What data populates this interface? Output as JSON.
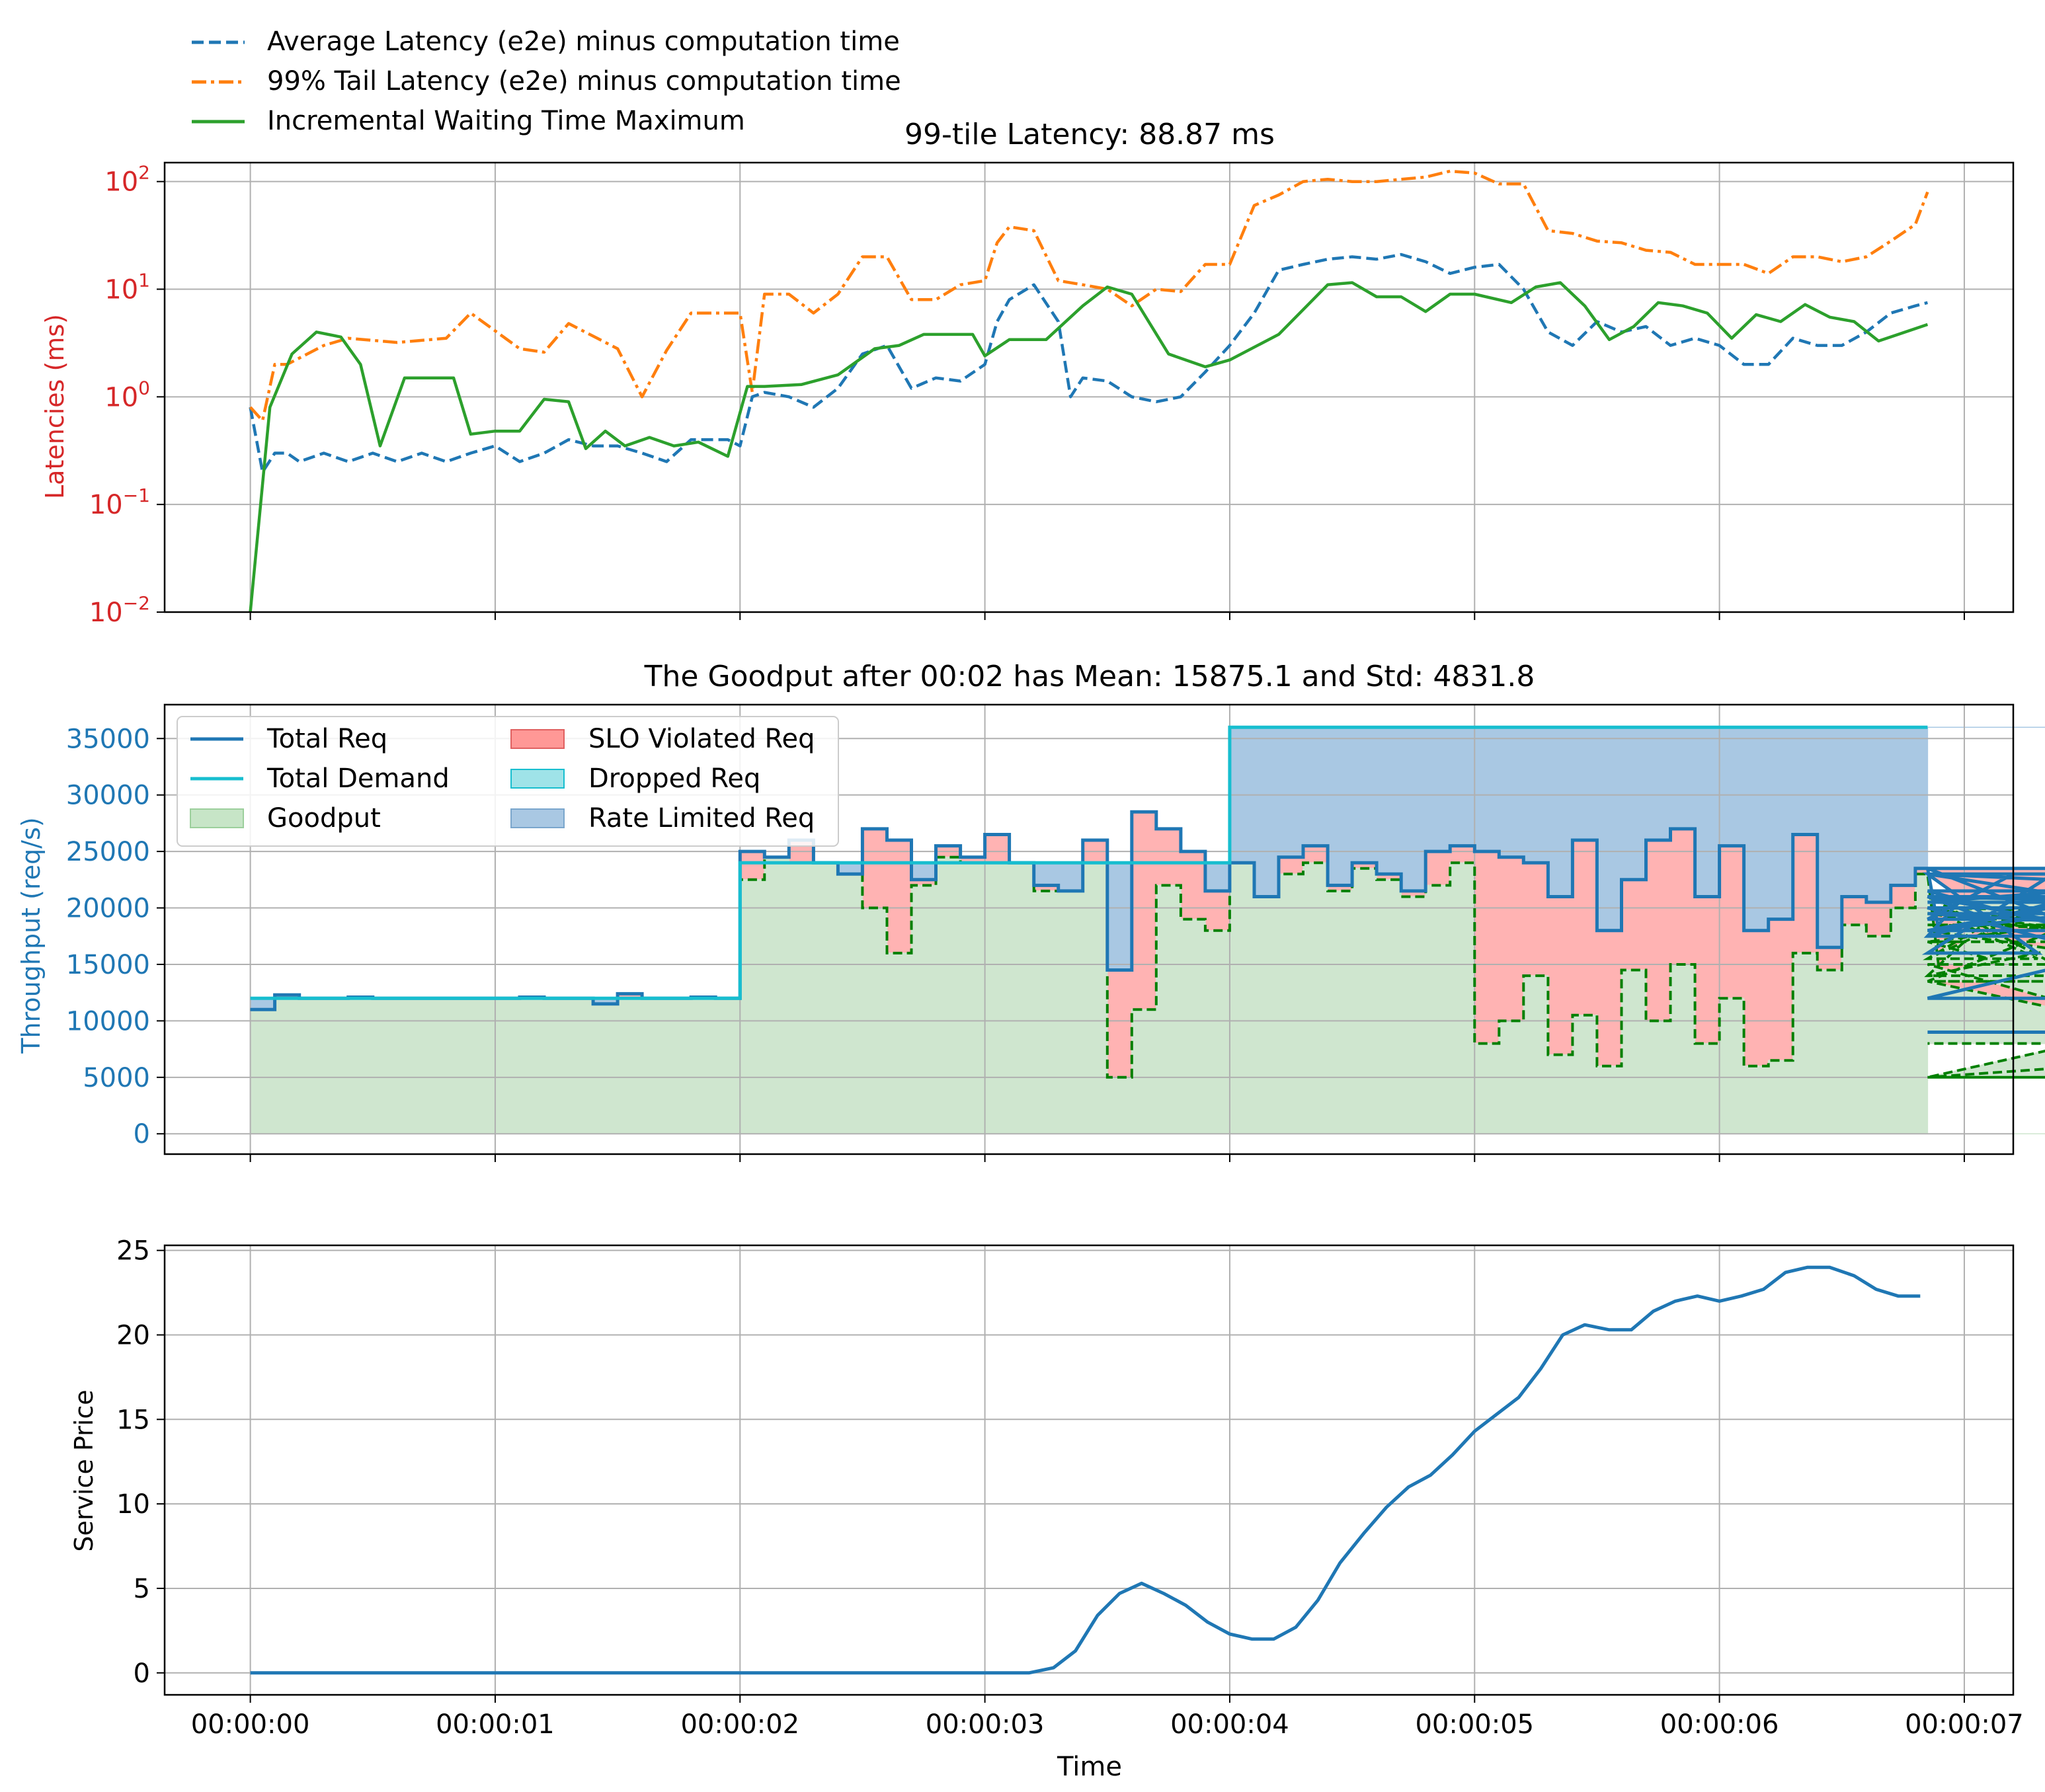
{
  "top_legend": [
    {
      "label": "Average Latency (e2e) minus computation time",
      "color": "#1f77b4",
      "style": "dashed"
    },
    {
      "label": "99% Tail Latency (e2e) minus computation time",
      "color": "#ff7f0e",
      "style": "dashdot"
    },
    {
      "label": "Incremental Waiting Time Maximum",
      "color": "#2ca02c",
      "style": "solid"
    }
  ],
  "chart_data": [
    {
      "type": "line",
      "title": "99-tile Latency: 88.87 ms",
      "ylabel": "Latencies (ms)",
      "ylabel_color": "#d62728",
      "yscale": "log",
      "ylim": [
        0.01,
        150
      ],
      "xlim": [
        -0.35,
        7.2
      ],
      "x_unit": "seconds",
      "grid": true,
      "yticks": [
        {
          "value": 0.01,
          "base": "10",
          "exp": "−2"
        },
        {
          "value": 0.1,
          "base": "10",
          "exp": "−1"
        },
        {
          "value": 1,
          "base": "10",
          "exp": "0"
        },
        {
          "value": 10,
          "base": "10",
          "exp": "1"
        },
        {
          "value": 100,
          "base": "10",
          "exp": "2"
        }
      ],
      "series": [
        {
          "name": "Average Latency (e2e) minus computation time",
          "color": "#1f77b4",
          "dash": "dashed",
          "x": [
            0,
            0.05,
            0.1,
            0.15,
            0.2,
            0.3,
            0.4,
            0.5,
            0.6,
            0.7,
            0.8,
            0.9,
            1.0,
            1.1,
            1.2,
            1.3,
            1.4,
            1.5,
            1.6,
            1.7,
            1.8,
            1.9,
            1.95,
            2.0,
            2.05,
            2.1,
            2.2,
            2.3,
            2.4,
            2.5,
            2.6,
            2.7,
            2.8,
            2.9,
            3.0,
            3.05,
            3.1,
            3.2,
            3.3,
            3.35,
            3.4,
            3.5,
            3.6,
            3.7,
            3.8,
            3.9,
            4.0,
            4.1,
            4.2,
            4.3,
            4.4,
            4.5,
            4.6,
            4.7,
            4.8,
            4.9,
            5.0,
            5.1,
            5.2,
            5.3,
            5.4,
            5.5,
            5.6,
            5.7,
            5.8,
            5.9,
            6.0,
            6.1,
            6.2,
            6.3,
            6.4,
            6.5,
            6.6,
            6.7,
            6.8,
            6.85
          ],
          "y": [
            0.8,
            0.2,
            0.3,
            0.3,
            0.25,
            0.3,
            0.25,
            0.3,
            0.25,
            0.3,
            0.25,
            0.3,
            0.35,
            0.25,
            0.3,
            0.4,
            0.35,
            0.35,
            0.3,
            0.25,
            0.4,
            0.4,
            0.4,
            0.35,
            1.0,
            1.1,
            1.0,
            0.8,
            1.2,
            2.5,
            3.0,
            1.2,
            1.5,
            1.4,
            2.0,
            5.0,
            8.0,
            11.0,
            5.0,
            1.0,
            1.5,
            1.4,
            1.0,
            0.9,
            1.0,
            1.7,
            3.0,
            6.0,
            15.0,
            17.0,
            19.0,
            20.0,
            19.0,
            21.0,
            18.0,
            14.0,
            16.0,
            17.0,
            10.0,
            4.0,
            3.0,
            5.0,
            4.0,
            4.5,
            3.0,
            3.5,
            3.0,
            2.0,
            2.0,
            3.5,
            3.0,
            3.0,
            4.0,
            6.0,
            7.0,
            7.5
          ]
        },
        {
          "name": "99% Tail Latency (e2e) minus computation time",
          "color": "#ff7f0e",
          "dash": "dashdot",
          "x": [
            0,
            0.05,
            0.1,
            0.15,
            0.3,
            0.4,
            0.6,
            0.8,
            0.9,
            1.1,
            1.2,
            1.3,
            1.5,
            1.6,
            1.7,
            1.8,
            1.9,
            2.0,
            2.05,
            2.1,
            2.2,
            2.3,
            2.4,
            2.5,
            2.6,
            2.7,
            2.8,
            2.9,
            3.0,
            3.05,
            3.1,
            3.2,
            3.3,
            3.4,
            3.5,
            3.6,
            3.7,
            3.8,
            3.9,
            4.0,
            4.1,
            4.2,
            4.3,
            4.4,
            4.5,
            4.6,
            4.7,
            4.8,
            4.9,
            5.0,
            5.1,
            5.2,
            5.3,
            5.4,
            5.5,
            5.6,
            5.7,
            5.8,
            5.9,
            6.0,
            6.1,
            6.2,
            6.3,
            6.4,
            6.5,
            6.6,
            6.7,
            6.8,
            6.85
          ],
          "y": [
            0.8,
            0.6,
            2.0,
            2.0,
            3.0,
            3.5,
            3.2,
            3.5,
            6.0,
            2.8,
            2.6,
            4.8,
            2.8,
            1.0,
            2.7,
            6.0,
            6.0,
            6.0,
            1.1,
            9.0,
            9.0,
            6.0,
            9.0,
            20.0,
            20.0,
            8.0,
            8.0,
            11.0,
            12.0,
            27.0,
            38.0,
            35.0,
            12.0,
            11.0,
            10.0,
            7.0,
            10.0,
            9.5,
            17.0,
            17.0,
            60.0,
            75.0,
            100.0,
            105.0,
            100.0,
            100.0,
            105.0,
            110.0,
            125.0,
            120.0,
            95.0,
            95.0,
            35.0,
            33.0,
            28.0,
            27.0,
            23.0,
            22.0,
            17.0,
            17.0,
            17.0,
            14.0,
            20.0,
            20.0,
            18.0,
            20.0,
            28.0,
            40.0,
            80.0
          ]
        },
        {
          "name": "Incremental Waiting Time Maximum",
          "color": "#2ca02c",
          "dash": "solid",
          "x": [
            0,
            0.08,
            0.17,
            0.27,
            0.37,
            0.45,
            0.53,
            0.63,
            0.73,
            0.83,
            0.9,
            1.0,
            1.1,
            1.2,
            1.3,
            1.37,
            1.45,
            1.53,
            1.63,
            1.73,
            1.83,
            1.95,
            2.03,
            2.1,
            2.25,
            2.4,
            2.55,
            2.65,
            2.75,
            2.95,
            3.0,
            3.1,
            3.25,
            3.4,
            3.5,
            3.6,
            3.75,
            3.9,
            4.0,
            4.2,
            4.4,
            4.5,
            4.6,
            4.7,
            4.8,
            4.9,
            5.0,
            5.15,
            5.25,
            5.35,
            5.45,
            5.55,
            5.65,
            5.75,
            5.85,
            5.95,
            6.05,
            6.15,
            6.25,
            6.35,
            6.45,
            6.55,
            6.65,
            6.85
          ],
          "y": [
            0.01,
            0.8,
            2.5,
            4.0,
            3.6,
            2.0,
            0.35,
            1.5,
            1.5,
            1.5,
            0.45,
            0.48,
            0.48,
            0.95,
            0.9,
            0.33,
            0.48,
            0.35,
            0.42,
            0.35,
            0.38,
            0.28,
            1.25,
            1.25,
            1.3,
            1.6,
            2.8,
            3.0,
            3.8,
            3.8,
            2.4,
            3.4,
            3.4,
            7.0,
            10.5,
            9.0,
            2.5,
            1.9,
            2.2,
            3.8,
            11.0,
            11.5,
            8.5,
            8.5,
            6.2,
            9.0,
            9.0,
            7.5,
            10.5,
            11.5,
            7.0,
            3.4,
            4.5,
            7.5,
            7.0,
            6.0,
            3.5,
            5.8,
            5.0,
            7.2,
            5.5,
            5.0,
            3.3,
            4.7
          ]
        }
      ]
    },
    {
      "type": "area",
      "title": "The Goodput after 00:02 has Mean: 15875.1 and Std: 4831.8",
      "ylabel": "Throughput (req/s)",
      "ylabel_color": "#1f77b4",
      "ylim": [
        -1800,
        38000
      ],
      "xlim": [
        -0.35,
        7.2
      ],
      "x_unit": "seconds",
      "grid": true,
      "yticks": [
        0,
        5000,
        10000,
        15000,
        20000,
        25000,
        30000,
        35000
      ],
      "legend_position": "upper left",
      "legend": [
        {
          "label": "Total Req",
          "kind": "line",
          "color": "#1f77b4"
        },
        {
          "label": "SLO Violated Req",
          "kind": "patch",
          "color": "#ff9896",
          "edge": "#e06060"
        },
        {
          "label": "Total Demand",
          "kind": "line",
          "color": "#17becf"
        },
        {
          "label": "Dropped Req",
          "kind": "patch",
          "color": "#9fe3e8",
          "edge": "#17becf"
        },
        {
          "label": "Goodput",
          "kind": "patch",
          "color": "#c7e5c7",
          "edge": "#9ccf9c"
        },
        {
          "label": "Rate Limited Req",
          "kind": "patch",
          "color": "#a9c8e3",
          "edge": "#7aa6cc"
        }
      ],
      "step": 0.1,
      "demand": {
        "x": [
          0,
          2.0,
          2.0,
          4.0,
          4.0,
          6.85
        ],
        "y": [
          12000,
          12000,
          24000,
          24000,
          36000,
          36000
        ]
      },
      "total_req": [
        11000,
        12300,
        12000,
        12000,
        12100,
        12000,
        12000,
        12000,
        12000,
        12000,
        12000,
        12100,
        12000,
        12000,
        11500,
        12400,
        12000,
        12000,
        12100,
        12000,
        25000,
        24500,
        26000,
        24000,
        23000,
        27000,
        26000,
        22500,
        25500,
        24500,
        26500,
        24000,
        22000,
        21500,
        26000,
        14500,
        28500,
        27000,
        25000,
        21500,
        24000,
        21000,
        24500,
        25500,
        22000,
        24000,
        23000,
        21500,
        25000,
        25500,
        25000,
        24500,
        24000,
        21000,
        26000,
        18000,
        22500,
        26000,
        27000,
        21000,
        25500,
        18000,
        19000,
        26500,
        16500,
        21000,
        20500,
        22000,
        23500,
        17500,
        21000,
        19000,
        23000,
        16000,
        23500,
        18000,
        21000,
        17500,
        23000,
        19500,
        18000,
        21000,
        20500,
        23000,
        21500,
        12000,
        21000,
        20000,
        9000
      ],
      "goodput": [
        11000,
        12000,
        12000,
        12000,
        12000,
        12000,
        12000,
        12000,
        12000,
        12000,
        12000,
        12000,
        12000,
        12000,
        11500,
        12000,
        12000,
        12000,
        12000,
        12000,
        22500,
        24500,
        24000,
        24000,
        23000,
        20000,
        16000,
        22000,
        24500,
        24000,
        24000,
        24000,
        21500,
        21500,
        24000,
        5000,
        11000,
        22000,
        19000,
        18000,
        24000,
        21000,
        23000,
        24000,
        21500,
        23500,
        22500,
        21000,
        22000,
        24000,
        8000,
        10000,
        14000,
        7000,
        10500,
        6000,
        14500,
        10000,
        15000,
        8000,
        12000,
        6000,
        6500,
        16000,
        14500,
        18500,
        17500,
        20000,
        23000,
        14000,
        17000,
        15500,
        20000,
        15500,
        21000,
        13500,
        20000,
        17000,
        19500,
        18500,
        18000,
        14000,
        20000,
        19500,
        15000,
        5000,
        13500,
        5000,
        8000
      ]
    },
    {
      "type": "line",
      "title": "",
      "xlabel": "Time",
      "ylabel": "Service Price",
      "ylabel_color": "#000000",
      "ylim": [
        -1.3,
        25.3
      ],
      "xlim": [
        -0.35,
        7.2
      ],
      "x_unit": "seconds",
      "grid": true,
      "yticks": [
        0,
        5,
        10,
        15,
        20,
        25
      ],
      "xticks": [
        {
          "value": 0,
          "label": "00:00:00"
        },
        {
          "value": 1,
          "label": "00:00:01"
        },
        {
          "value": 2,
          "label": "00:00:02"
        },
        {
          "value": 3,
          "label": "00:00:03"
        },
        {
          "value": 4,
          "label": "00:00:04"
        },
        {
          "value": 5,
          "label": "00:00:05"
        },
        {
          "value": 6,
          "label": "00:00:06"
        },
        {
          "value": 7,
          "label": "00:00:07"
        }
      ],
      "series": [
        {
          "color": "#1f77b4",
          "x": [
            0,
            3.1,
            3.18,
            3.28,
            3.37,
            3.46,
            3.55,
            3.64,
            3.73,
            3.82,
            3.91,
            4.0,
            4.09,
            4.18,
            4.27,
            4.36,
            4.45,
            4.55,
            4.64,
            4.73,
            4.82,
            4.91,
            5.0,
            5.09,
            5.18,
            5.27,
            5.36,
            5.45,
            5.55,
            5.64,
            5.73,
            5.82,
            5.91,
            6.0,
            6.09,
            6.18,
            6.27,
            6.36,
            6.45,
            6.55,
            6.64,
            6.73,
            6.82
          ],
          "y": [
            0,
            0,
            0,
            0.3,
            1.3,
            3.4,
            4.7,
            5.3,
            4.7,
            4.0,
            3.0,
            2.3,
            2.0,
            2.0,
            2.7,
            4.3,
            6.5,
            8.3,
            9.8,
            11.0,
            11.7,
            12.9,
            14.3,
            15.3,
            16.3,
            18.0,
            20.0,
            20.6,
            20.3,
            20.3,
            21.4,
            22.0,
            22.3,
            22.0,
            22.3,
            22.7,
            23.7,
            24.0,
            24.0,
            23.5,
            22.7,
            22.3,
            22.3
          ]
        }
      ]
    }
  ]
}
